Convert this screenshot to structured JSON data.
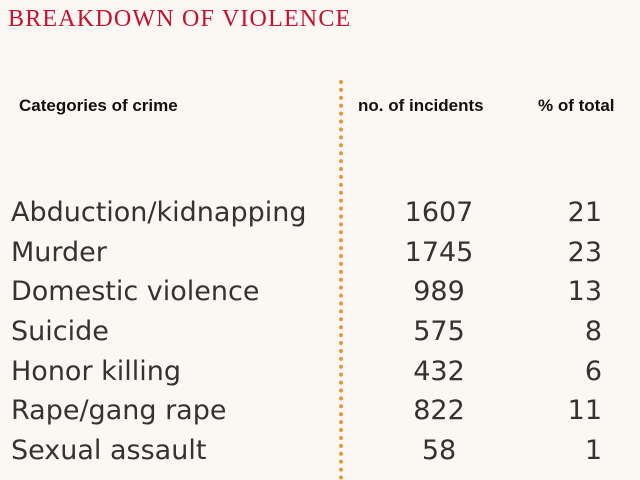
{
  "title": "BREAKDOWN OF VIOLENCE",
  "colors": {
    "title": "#c8102e",
    "divider": "#e39a38",
    "text": "#333333",
    "background": "#fbf8f3"
  },
  "chart_data": {
    "type": "table",
    "title": "BREAKDOWN OF VIOLENCE",
    "columns": [
      "Categories of crime",
      "no. of incidents",
      "% of total"
    ],
    "rows": [
      {
        "category": "Abduction/kidnapping",
        "incidents": "1607",
        "percent": "21"
      },
      {
        "category": "Murder",
        "incidents": "1745",
        "percent": "23"
      },
      {
        "category": "Domestic violence",
        "incidents": "989",
        "percent": "13"
      },
      {
        "category": "Suicide",
        "incidents": "575",
        "percent": "8"
      },
      {
        "category": "Honor killing",
        "incidents": "432",
        "percent": "6"
      },
      {
        "category": "Rape/gang rape",
        "incidents": "822",
        "percent": "11"
      },
      {
        "category": "Sexual assault",
        "incidents": "58",
        "percent": "1"
      }
    ]
  }
}
